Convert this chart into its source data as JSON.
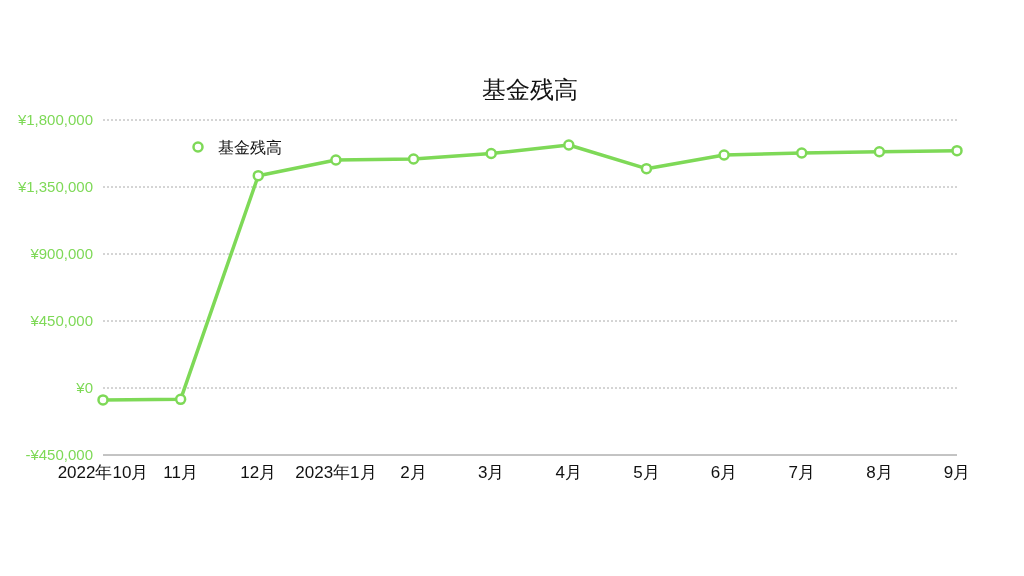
{
  "chart_data": {
    "type": "line",
    "title": "基金残高",
    "categories": [
      "2022年10月",
      "11月",
      "12月",
      "2023年1月",
      "2月",
      "3月",
      "4月",
      "5月",
      "6月",
      "7月",
      "8月",
      "9月"
    ],
    "series": [
      {
        "name": "基金残高",
        "color": "#7ed957",
        "values": [
          -80000,
          -76000,
          1426000,
          1531000,
          1538000,
          1575000,
          1632000,
          1473000,
          1565000,
          1578000,
          1587000,
          1594000
        ]
      }
    ],
    "ylim": [
      -450000,
      1800000
    ],
    "yticks": [
      {
        "value": -450000,
        "label": "-¥450,000"
      },
      {
        "value": 0,
        "label": "¥0"
      },
      {
        "value": 450000,
        "label": "¥450,000"
      },
      {
        "value": 900000,
        "label": "¥900,000"
      },
      {
        "value": 1350000,
        "label": "¥1,350,000"
      },
      {
        "value": 1800000,
        "label": "¥1,800,000"
      }
    ],
    "grid": "y",
    "legend": "top left",
    "marker": "circle",
    "line_style": "solid"
  }
}
